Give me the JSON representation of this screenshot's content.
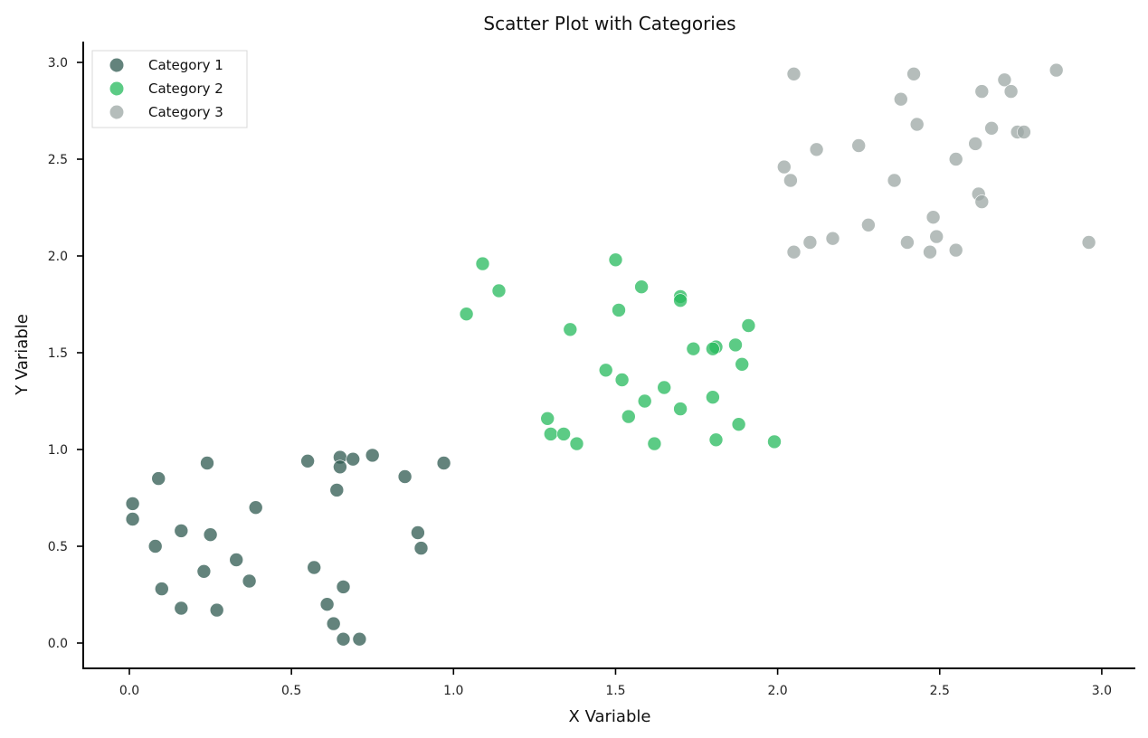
{
  "chart_data": {
    "type": "scatter",
    "title": "Scatter Plot with Categories",
    "xlabel": "X Variable",
    "ylabel": "Y Variable",
    "xlim": [
      -0.14,
      3.1
    ],
    "ylim": [
      -0.13,
      3.1
    ],
    "xticks": [
      0.0,
      0.5,
      1.0,
      1.5,
      2.0,
      2.5,
      3.0
    ],
    "xtick_labels": [
      "0.0",
      "0.5",
      "1.0",
      "1.5",
      "2.0",
      "2.5",
      "3.0"
    ],
    "yticks": [
      0.0,
      0.5,
      1.0,
      1.5,
      2.0,
      2.5,
      3.0
    ],
    "ytick_labels": [
      "0.0",
      "0.5",
      "1.0",
      "1.5",
      "2.0",
      "2.5",
      "3.0"
    ],
    "grid": false,
    "legend_position": "upper left",
    "series": [
      {
        "name": "Category 1",
        "color": "#2f5a50",
        "points": [
          [
            0.24,
            0.93
          ],
          [
            0.09,
            0.85
          ],
          [
            0.01,
            0.72
          ],
          [
            0.01,
            0.64
          ],
          [
            0.39,
            0.7
          ],
          [
            0.16,
            0.58
          ],
          [
            0.25,
            0.56
          ],
          [
            0.08,
            0.5
          ],
          [
            0.33,
            0.43
          ],
          [
            0.23,
            0.37
          ],
          [
            0.37,
            0.32
          ],
          [
            0.1,
            0.28
          ],
          [
            0.16,
            0.18
          ],
          [
            0.27,
            0.17
          ],
          [
            0.55,
            0.94
          ],
          [
            0.65,
            0.96
          ],
          [
            0.65,
            0.91
          ],
          [
            0.69,
            0.95
          ],
          [
            0.75,
            0.97
          ],
          [
            0.97,
            0.93
          ],
          [
            0.85,
            0.86
          ],
          [
            0.64,
            0.79
          ],
          [
            0.89,
            0.57
          ],
          [
            0.9,
            0.49
          ],
          [
            0.57,
            0.39
          ],
          [
            0.66,
            0.29
          ],
          [
            0.61,
            0.2
          ],
          [
            0.63,
            0.1
          ],
          [
            0.66,
            0.02
          ],
          [
            0.71,
            0.02
          ]
        ]
      },
      {
        "name": "Category 2",
        "color": "#25b95c",
        "points": [
          [
            1.09,
            1.96
          ],
          [
            1.14,
            1.82
          ],
          [
            1.04,
            1.7
          ],
          [
            1.36,
            1.62
          ],
          [
            1.5,
            1.98
          ],
          [
            1.29,
            1.16
          ],
          [
            1.3,
            1.08
          ],
          [
            1.34,
            1.08
          ],
          [
            1.38,
            1.03
          ],
          [
            1.58,
            1.84
          ],
          [
            1.51,
            1.72
          ],
          [
            1.7,
            1.79
          ],
          [
            1.7,
            1.77
          ],
          [
            1.91,
            1.64
          ],
          [
            1.74,
            1.52
          ],
          [
            1.81,
            1.53
          ],
          [
            1.8,
            1.52
          ],
          [
            1.87,
            1.54
          ],
          [
            1.89,
            1.44
          ],
          [
            1.47,
            1.41
          ],
          [
            1.52,
            1.36
          ],
          [
            1.65,
            1.32
          ],
          [
            1.59,
            1.25
          ],
          [
            1.8,
            1.27
          ],
          [
            1.7,
            1.21
          ],
          [
            1.54,
            1.17
          ],
          [
            1.88,
            1.13
          ],
          [
            1.62,
            1.03
          ],
          [
            1.81,
            1.05
          ],
          [
            1.99,
            1.04
          ]
        ]
      },
      {
        "name": "Category 3",
        "color": "#9ca7a4",
        "points": [
          [
            2.05,
            2.94
          ],
          [
            2.42,
            2.94
          ],
          [
            2.38,
            2.81
          ],
          [
            2.43,
            2.68
          ],
          [
            2.25,
            2.57
          ],
          [
            2.12,
            2.55
          ],
          [
            2.02,
            2.46
          ],
          [
            2.04,
            2.39
          ],
          [
            2.36,
            2.39
          ],
          [
            2.48,
            2.2
          ],
          [
            2.28,
            2.16
          ],
          [
            2.17,
            2.09
          ],
          [
            2.49,
            2.1
          ],
          [
            2.1,
            2.07
          ],
          [
            2.4,
            2.07
          ],
          [
            2.05,
            2.02
          ],
          [
            2.47,
            2.02
          ],
          [
            2.86,
            2.96
          ],
          [
            2.7,
            2.91
          ],
          [
            2.72,
            2.85
          ],
          [
            2.63,
            2.85
          ],
          [
            2.66,
            2.66
          ],
          [
            2.74,
            2.64
          ],
          [
            2.76,
            2.64
          ],
          [
            2.61,
            2.58
          ],
          [
            2.55,
            2.5
          ],
          [
            2.62,
            2.32
          ],
          [
            2.63,
            2.28
          ],
          [
            2.55,
            2.03
          ],
          [
            2.96,
            2.07
          ]
        ]
      }
    ]
  }
}
